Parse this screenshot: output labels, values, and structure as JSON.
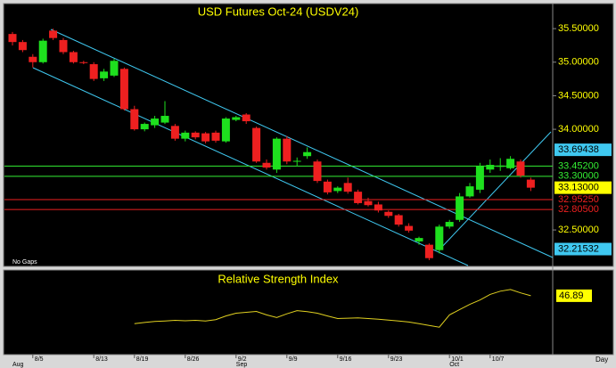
{
  "chart_data": [
    {
      "type": "candlestick",
      "title": "USD Futures Oct-24 (USDV24)",
      "annotations": [
        "No Gaps"
      ],
      "x_label": "Day",
      "categories": [
        null,
        null,
        "8/5",
        null,
        null,
        null,
        null,
        null,
        "8/13",
        null,
        null,
        null,
        "8/19",
        null,
        null,
        null,
        null,
        "8/26",
        null,
        null,
        null,
        null,
        "9/2",
        null,
        null,
        null,
        null,
        "9/9",
        null,
        null,
        null,
        null,
        "9/16",
        null,
        null,
        null,
        null,
        "9/23",
        null,
        null,
        null,
        null,
        null,
        "10/1",
        null,
        null,
        null,
        "10/7",
        null,
        null,
        null,
        null
      ],
      "month_labels": [
        "Aug",
        null,
        null,
        null,
        null,
        null,
        null,
        null,
        null,
        null,
        null,
        null,
        null,
        null,
        null,
        null,
        null,
        null,
        null,
        null,
        null,
        null,
        "Sep",
        null,
        null,
        null,
        null,
        null,
        null,
        null,
        null,
        null,
        null,
        null,
        null,
        null,
        null,
        null,
        null,
        null,
        null,
        null,
        null,
        "Oct",
        null,
        null,
        null,
        null,
        null,
        null,
        null,
        null
      ],
      "open": [
        35.42,
        35.3,
        35.08,
        35.0,
        35.47,
        35.33,
        35.15,
        35.0,
        34.97,
        34.76,
        34.8,
        34.9,
        34.3,
        34.0,
        34.06,
        34.1,
        34.05,
        33.86,
        33.95,
        33.94,
        33.95,
        33.82,
        34.14,
        34.22,
        34.02,
        33.5,
        33.4,
        33.86,
        33.52,
        33.6,
        33.52,
        33.22,
        33.08,
        33.2,
        33.07,
        32.93,
        32.88,
        32.77,
        32.72,
        32.56,
        32.33,
        32.28,
        32.2,
        32.55,
        32.65,
        33.0,
        33.1,
        33.4,
        33.44,
        33.42,
        33.52,
        33.25
      ],
      "high": [
        35.45,
        35.33,
        35.12,
        35.35,
        35.5,
        35.36,
        35.17,
        35.02,
        35.0,
        34.9,
        35.05,
        34.92,
        34.35,
        34.1,
        34.2,
        34.42,
        34.08,
        33.98,
        33.97,
        33.96,
        33.98,
        34.18,
        34.2,
        34.24,
        34.04,
        33.55,
        33.88,
        33.9,
        33.58,
        33.73,
        33.55,
        33.25,
        33.15,
        33.28,
        33.1,
        32.98,
        32.92,
        32.79,
        32.74,
        32.6,
        32.4,
        32.3,
        32.58,
        32.65,
        33.05,
        33.2,
        33.5,
        33.55,
        33.57,
        33.6,
        33.55,
        33.28
      ],
      "low": [
        35.25,
        35.15,
        34.92,
        34.98,
        35.33,
        35.12,
        34.98,
        34.97,
        34.72,
        34.72,
        34.78,
        34.28,
        33.98,
        33.97,
        34.02,
        34.08,
        33.83,
        33.82,
        33.85,
        33.79,
        33.8,
        33.8,
        34.12,
        34.08,
        33.5,
        33.4,
        33.35,
        33.48,
        33.45,
        33.56,
        33.2,
        33.03,
        33.05,
        33.04,
        32.88,
        32.85,
        32.76,
        32.68,
        32.55,
        32.46,
        32.28,
        32.05,
        32.15,
        32.52,
        32.62,
        32.98,
        33.05,
        33.35,
        33.38,
        33.4,
        33.28,
        33.08
      ],
      "close": [
        35.3,
        35.18,
        35.0,
        35.32,
        35.36,
        35.15,
        35.0,
        34.99,
        34.75,
        34.86,
        35.02,
        34.3,
        34.0,
        34.08,
        34.16,
        34.2,
        33.86,
        33.95,
        33.88,
        33.82,
        33.83,
        34.16,
        34.18,
        34.12,
        33.52,
        33.43,
        33.86,
        33.52,
        33.53,
        33.66,
        33.23,
        33.06,
        33.13,
        33.07,
        32.9,
        32.87,
        32.79,
        32.71,
        32.58,
        32.49,
        32.38,
        32.08,
        32.55,
        32.62,
        33.0,
        33.15,
        33.45,
        33.47,
        33.46,
        33.56,
        33.31,
        33.13
      ],
      "up_color": "#1ee01e",
      "down_color": "#ee2020",
      "ylim": [
        31.97,
        35.86
      ],
      "yticks": [
        {
          "value": 35.5,
          "label": "35.50000"
        },
        {
          "value": 35.0,
          "label": "35.00000"
        },
        {
          "value": 34.5,
          "label": "34.50000"
        },
        {
          "value": 34.0,
          "label": "34.00000"
        },
        {
          "value": 32.5,
          "label": "32.50000"
        }
      ],
      "levels": [
        {
          "value": 33.69438,
          "label": "33.69438",
          "color": "#3fc8f0",
          "box": true,
          "line": false
        },
        {
          "value": 33.452,
          "label": "33.45200",
          "color": "#33ee33",
          "box": false,
          "line": true
        },
        {
          "value": 33.3,
          "label": "33.30000",
          "color": "#33ee33",
          "box": false,
          "line": true
        },
        {
          "value": 33.13,
          "label": "33.13000",
          "color": "#ffff00",
          "box": true,
          "line": false
        },
        {
          "value": 32.9525,
          "label": "32.95250",
          "color": "#ee2020",
          "box": false,
          "line": true
        },
        {
          "value": 32.805,
          "label": "32.80500",
          "color": "#ee2020",
          "box": false,
          "line": true
        },
        {
          "value": 32.21532,
          "label": "32.21532",
          "color": "#3fc8f0",
          "box": true,
          "line": false
        }
      ]
    },
    {
      "type": "line",
      "title": "Relative Strength Index",
      "color": "#e0d020",
      "values": [
        null,
        null,
        null,
        null,
        null,
        null,
        null,
        null,
        null,
        null,
        null,
        null,
        33.9,
        34.5,
        35.0,
        35.2,
        35.5,
        35.3,
        35.5,
        35.2,
        35.8,
        37.5,
        38.8,
        39.2,
        39.6,
        38.0,
        36.8,
        38.5,
        40.0,
        39.5,
        38.8,
        37.5,
        36.3,
        36.5,
        36.6,
        36.3,
        36.0,
        35.6,
        35.2,
        34.7,
        33.9,
        33.1,
        32.3,
        38.0,
        40.5,
        42.9,
        44.9,
        47.5,
        49.0,
        49.8,
        48.2,
        46.89
      ],
      "ylim": [
        20,
        58
      ]
    }
  ]
}
